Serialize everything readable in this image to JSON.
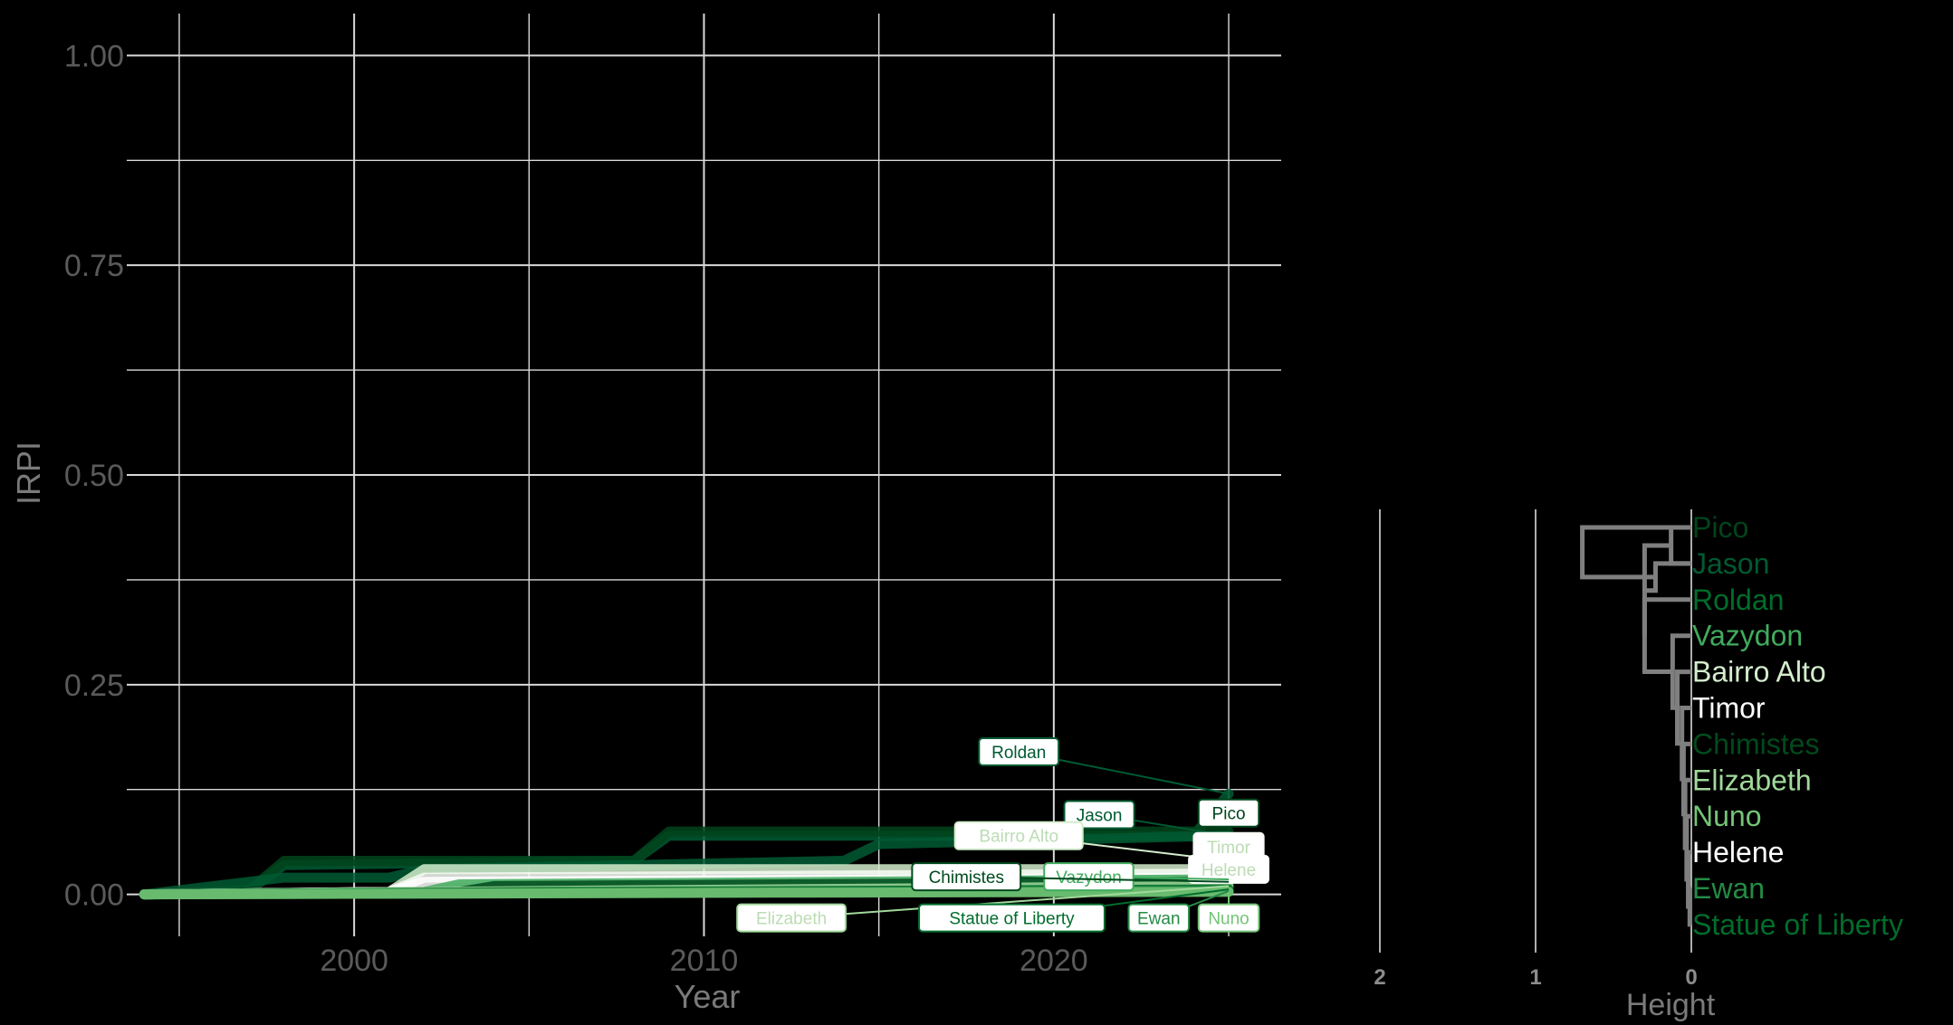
{
  "colors": {
    "background": "#000000",
    "grid": "#d9d9d9",
    "axis_text": "#5a5a5a",
    "axis_title": "#7a7a7a",
    "dendro_line": "#7f7f7f"
  },
  "chart_data": [
    {
      "type": "line",
      "xlabel": "Year",
      "ylabel": "IRPI",
      "xlim": [
        1993.5,
        2026.5
      ],
      "ylim": [
        -0.05,
        1.05
      ],
      "x_ticks": [
        2000,
        2010,
        2020
      ],
      "x_tick_labels": [
        "2000",
        "2010",
        "2020"
      ],
      "y_ticks": [
        0,
        0.25,
        0.5,
        0.75,
        1.0
      ],
      "y_tick_labels": [
        "0.00",
        "0.25",
        "0.50",
        "0.75",
        "1.00"
      ],
      "grid": true,
      "legend": "none",
      "series": [
        {
          "name": "Roldan",
          "color": "#005a32",
          "points": [
            [
              1994,
              0
            ],
            [
              1997,
              0.005
            ],
            [
              1998,
              0.035
            ],
            [
              2008,
              0.04
            ],
            [
              2009,
              0.07
            ],
            [
              2024,
              0.07
            ],
            [
              2025,
              0.12
            ]
          ],
          "label_pos": [
            2019,
            0.17
          ]
        },
        {
          "name": "Pico",
          "color": "#00441b",
          "points": [
            [
              1994,
              0
            ],
            [
              1997,
              0.005
            ],
            [
              1998,
              0.04
            ],
            [
              2008,
              0.04
            ],
            [
              2009,
              0.075
            ],
            [
              2025,
              0.075
            ]
          ],
          "label_pos": [
            2025,
            0.097
          ]
        },
        {
          "name": "Jason",
          "color": "#005a32",
          "points": [
            [
              1994,
              0
            ],
            [
              1998,
              0.02
            ],
            [
              2001,
              0.02
            ],
            [
              2002,
              0.03
            ],
            [
              2014,
              0.04
            ],
            [
              2015,
              0.06
            ],
            [
              2025,
              0.07
            ]
          ],
          "label_pos": [
            2021.3,
            0.095
          ]
        },
        {
          "name": "Bairro Alto",
          "color": "#d4edcd",
          "points": [
            [
              1994,
              0
            ],
            [
              2001,
              0.003
            ],
            [
              2002,
              0.03
            ],
            [
              2024,
              0.03
            ],
            [
              2025,
              0.04
            ]
          ],
          "label_pos": [
            2019,
            0.07
          ]
        },
        {
          "name": "Timor",
          "color": "#f7fcf5",
          "points": [
            [
              1994,
              0
            ],
            [
              2001,
              0.003
            ],
            [
              2002,
              0.02
            ],
            [
              2025,
              0.025
            ]
          ],
          "label_pos": [
            2025,
            0.057
          ]
        },
        {
          "name": "Helene",
          "color": "#ffffff",
          "points": [
            [
              1994,
              0
            ],
            [
              2001,
              0.003
            ],
            [
              2002,
              0.015
            ],
            [
              2025,
              0.02
            ]
          ],
          "label_pos": [
            2025,
            0.03
          ]
        },
        {
          "name": "Vazydon",
          "color": "#41ab5d",
          "points": [
            [
              1994,
              0
            ],
            [
              2002,
              0.003
            ],
            [
              2003,
              0.012
            ],
            [
              2025,
              0.018
            ]
          ],
          "label_pos": [
            2021,
            0.021
          ]
        },
        {
          "name": "Chimistes",
          "color": "#004a1d",
          "points": [
            [
              1994,
              0
            ],
            [
              2003,
              0.003
            ],
            [
              2004,
              0.01
            ],
            [
              2025,
              0.015
            ]
          ],
          "label_pos": [
            2017.5,
            0.021
          ]
        },
        {
          "name": "Elizabeth",
          "color": "#a1d99b",
          "points": [
            [
              1994,
              0
            ],
            [
              2005,
              0.004
            ],
            [
              2025,
              0.01
            ]
          ],
          "label_pos": [
            2012.5,
            -0.028
          ]
        },
        {
          "name": "Statue of Liberty",
          "color": "#006d2c",
          "points": [
            [
              1994,
              0
            ],
            [
              2006,
              0.003
            ],
            [
              2025,
              0.006
            ]
          ],
          "label_pos": [
            2018.8,
            -0.028
          ]
        },
        {
          "name": "Ewan",
          "color": "#238b45",
          "points": [
            [
              1994,
              0
            ],
            [
              2010,
              0.002
            ],
            [
              2025,
              0.004
            ]
          ],
          "label_pos": [
            2023,
            -0.028
          ]
        },
        {
          "name": "Nuno",
          "color": "#74c476",
          "points": [
            [
              1994,
              0
            ],
            [
              2012,
              0.002
            ],
            [
              2025,
              0.003
            ]
          ],
          "label_pos": [
            2025,
            -0.028
          ]
        }
      ]
    },
    {
      "type": "dendrogram",
      "xlabel": "Height",
      "x_ticks": [
        2,
        1,
        0
      ],
      "x_tick_labels": [
        "2",
        "1",
        "0"
      ],
      "leaves": [
        {
          "name": "Pico",
          "color": "#00441b"
        },
        {
          "name": "Jason",
          "color": "#005a32"
        },
        {
          "name": "Roldan",
          "color": "#006d2c"
        },
        {
          "name": "Vazydon",
          "color": "#41ab5d"
        },
        {
          "name": "Bairro Alto",
          "color": "#d4edcd"
        },
        {
          "name": "Timor",
          "color": "#ffffff"
        },
        {
          "name": "Chimistes",
          "color": "#004a1d"
        },
        {
          "name": "Elizabeth",
          "color": "#a1d99b"
        },
        {
          "name": "Nuno",
          "color": "#74c476"
        },
        {
          "name": "Helene",
          "color": "#ffffff"
        },
        {
          "name": "Ewan",
          "color": "#238b45"
        },
        {
          "name": "Statue of Liberty",
          "color": "#006d2c"
        }
      ],
      "merges": [
        {
          "a": [
            0,
            0
          ],
          "b": [
            0,
            1
          ],
          "h": 0.13
        },
        {
          "a": [
            0,
            10
          ],
          "b": [
            0,
            11
          ],
          "h": 0.01
        },
        {
          "a": [
            0,
            9
          ],
          "b": [
            1,
            1
          ],
          "h": 0.02
        },
        {
          "a": [
            0,
            8
          ],
          "b": [
            1,
            2
          ],
          "h": 0.03
        },
        {
          "a": [
            0,
            7
          ],
          "b": [
            1,
            3
          ],
          "h": 0.04
        },
        {
          "a": [
            0,
            6
          ],
          "b": [
            1,
            4
          ],
          "h": 0.05
        },
        {
          "a": [
            0,
            5
          ],
          "b": [
            1,
            5
          ],
          "h": 0.06
        },
        {
          "a": [
            0,
            4
          ],
          "b": [
            1,
            6
          ],
          "h": 0.09
        },
        {
          "a": [
            0,
            3
          ],
          "b": [
            1,
            7
          ],
          "h": 0.12
        },
        {
          "a": [
            0,
            2
          ],
          "b": [
            1,
            8
          ],
          "h": 0.3
        },
        {
          "a": [
            1,
            0
          ],
          "b": [
            1,
            9
          ],
          "h": 0.3
        },
        {
          "a": [
            1,
            10
          ],
          "b": [
            0,
            1
          ],
          "h": 0.23
        },
        {
          "a": [
            1,
            11
          ],
          "b": [
            0,
            0
          ],
          "h": 0.7
        }
      ]
    }
  ]
}
